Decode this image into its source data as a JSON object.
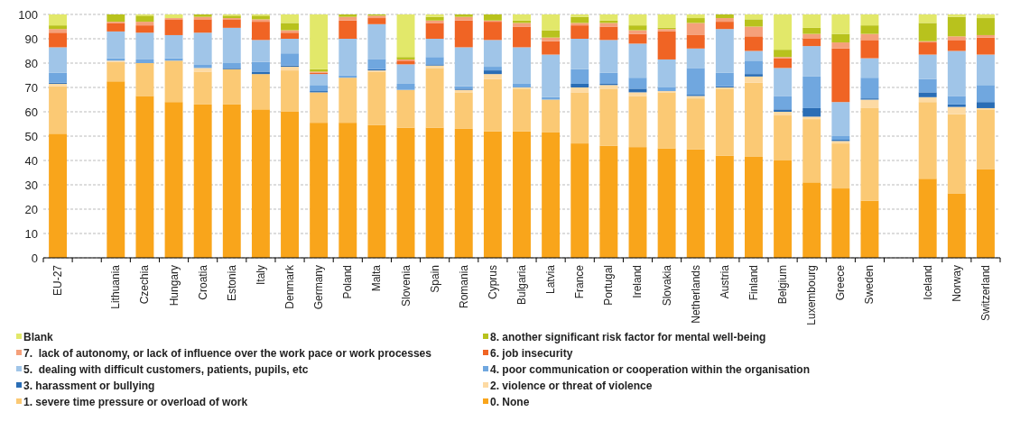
{
  "chart_data": {
    "type": "bar",
    "stacked": true,
    "grid": "y",
    "legend": "bottom",
    "ylim": [
      0,
      100
    ],
    "yticks": [
      0,
      10,
      20,
      30,
      40,
      50,
      60,
      70,
      80,
      90,
      100
    ],
    "categories": [
      "EU-27",
      null,
      "Lithuania",
      "Czechia",
      "Hungary",
      "Croatia",
      "Estonia",
      "Italy",
      "Denmark",
      "Germany",
      "Poland",
      "Malta",
      "Slovenia",
      "Spain",
      "Romania",
      "Cyprus",
      "Bulgaria",
      "Latvia",
      "France",
      "Portugal",
      "Ireland",
      "Slovakia",
      "Netherlands",
      "Austria",
      "Finland",
      "Belgium",
      "Luxembourg",
      "Greece",
      "Sweden",
      null,
      "Iceland",
      "Norway",
      "Switzerland"
    ],
    "series": [
      {
        "name": "0. None",
        "color": "#f9a51b",
        "values": [
          51,
          null,
          72.5,
          66.5,
          64,
          63,
          63,
          61,
          60,
          55.5,
          55.5,
          54.5,
          53.5,
          53.5,
          53,
          52,
          52,
          51.5,
          47,
          46,
          45.5,
          45,
          44.5,
          42,
          41.5,
          40,
          31,
          28.5,
          23.5,
          null,
          32.5,
          26.5,
          36.5
        ]
      },
      {
        "name": "1. severe time pressure or overload of work",
        "color": "#fbc974",
        "values": [
          19.5,
          null,
          8,
          13.5,
          17,
          13.5,
          14.5,
          14.5,
          17,
          12.5,
          18.5,
          22,
          15.5,
          24.5,
          15,
          21.5,
          17.5,
          13.5,
          21,
          23.5,
          21,
          23,
          21,
          27.5,
          30.5,
          18.5,
          26,
          18.5,
          38,
          null,
          31.5,
          32.5,
          24.5
        ]
      },
      {
        "name": "2. violence or threat of violence",
        "color": "#fddaa3",
        "values": [
          1,
          null,
          0.5,
          0,
          0,
          1.5,
          0,
          0,
          1.5,
          0,
          0,
          0.5,
          0,
          1,
          1,
          2,
          0.5,
          0,
          2,
          1.5,
          1.5,
          0.5,
          1,
          0.5,
          2.5,
          1.5,
          1,
          1,
          3.5,
          null,
          2,
          3,
          0.5
        ]
      },
      {
        "name": "3. harassment or bullying",
        "color": "#2a6db5",
        "values": [
          0.5,
          null,
          0,
          0,
          0,
          0,
          0.5,
          1,
          0.5,
          0.5,
          0,
          0.5,
          0,
          0.5,
          0.5,
          1.5,
          0,
          0,
          1.5,
          0.5,
          1.5,
          0,
          0.5,
          0.5,
          1,
          1,
          3.5,
          0.5,
          0.5,
          null,
          2,
          1,
          2.5
        ]
      },
      {
        "name": "4. poor communication or cooperation within the organisation",
        "color": "#70a7df",
        "values": [
          4,
          null,
          1,
          1.5,
          1,
          1.5,
          2,
          4,
          5,
          2.5,
          1,
          4,
          2.5,
          3,
          1,
          1.5,
          1.5,
          1,
          6,
          4.5,
          4.5,
          1.5,
          11,
          5.5,
          5.5,
          5.5,
          13,
          1.5,
          8.5,
          null,
          5.5,
          3.5,
          7
        ]
      },
      {
        "name": "5.  dealing with difficult customers, patients, pupils, etc",
        "color": "#a0c5e8",
        "values": [
          10.5,
          null,
          11,
          11,
          9.5,
          13,
          14.5,
          9,
          6,
          4.5,
          15,
          14.5,
          8,
          7.5,
          16,
          11,
          15,
          17.5,
          12.5,
          13.5,
          14,
          11.5,
          8,
          18,
          4,
          11.5,
          12.5,
          14,
          8,
          null,
          10,
          18.5,
          12.5
        ]
      },
      {
        "name": "6. job insecurity",
        "color": "#f06424",
        "values": [
          6,
          null,
          3.5,
          3,
          6.5,
          5.5,
          3.5,
          7.5,
          2.5,
          0.5,
          7.5,
          2.5,
          1.5,
          6.5,
          11,
          7.5,
          8.5,
          5.5,
          5.5,
          5.5,
          4,
          11.5,
          5.5,
          3,
          6,
          4,
          3,
          22,
          7.5,
          null,
          5,
          4.5,
          7
        ]
      },
      {
        "name": "7.  lack of autonomy, or lack of influence over the work pace or work processes",
        "color": "#f5a07a",
        "values": [
          1.5,
          null,
          0.5,
          1.5,
          0.5,
          1,
          0.5,
          1,
          1,
          0.5,
          1.5,
          1,
          0.5,
          1,
          1.5,
          0.5,
          1.5,
          1.5,
          1,
          1.5,
          1.5,
          1,
          5,
          1.5,
          4,
          0.5,
          2,
          2.5,
          2.5,
          null,
          0.5,
          1.5,
          1
        ]
      },
      {
        "name": "8. another significant risk factor for mental well-being",
        "color": "#b8c21d",
        "values": [
          1.5,
          null,
          3,
          2.5,
          0,
          1,
          1,
          1.5,
          3,
          1,
          1,
          0.5,
          1,
          1.5,
          1,
          2.5,
          1,
          3,
          2.5,
          1,
          2,
          0.5,
          2,
          1.5,
          3,
          3,
          2.5,
          3.5,
          3.5,
          null,
          7.5,
          8,
          7
        ]
      },
      {
        "name": "Blank",
        "color": "#e2e86a",
        "values": [
          4.5,
          null,
          0,
          0.5,
          1.5,
          0,
          0.5,
          0.5,
          3.5,
          22.5,
          0,
          0,
          17.5,
          1,
          0,
          0,
          2.5,
          6.5,
          1,
          2.5,
          4.5,
          5.5,
          1.5,
          0,
          2,
          14.5,
          5.5,
          8,
          4.5,
          null,
          3.5,
          1,
          1.5
        ]
      }
    ]
  }
}
